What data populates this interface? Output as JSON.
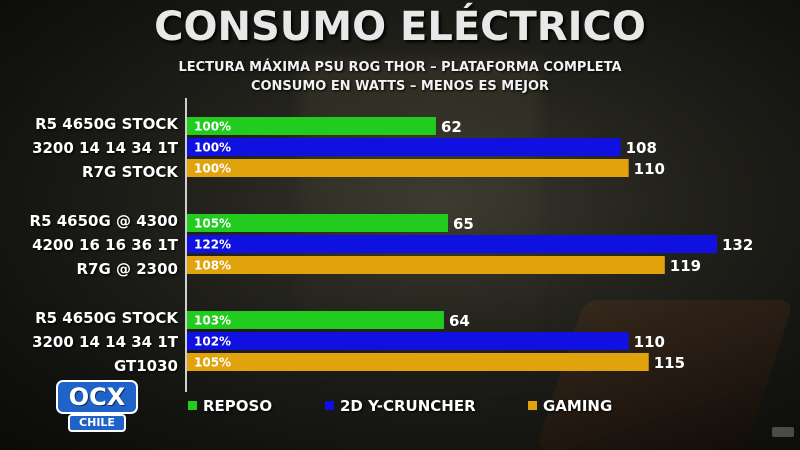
{
  "header": {
    "title": "CONSUMO ELÉCTRICO",
    "subtitle1": "LECTURA MÁXIMA PSU ROG THOR – PLATAFORMA COMPLETA",
    "subtitle2": "CONSUMO EN WATTS – MENOS ES MEJOR"
  },
  "groups": [
    {
      "line1": "R5 4650G STOCK",
      "line2": "3200 14 14 34 1T",
      "line3": "R7G STOCK"
    },
    {
      "line1": "R5 4650G @ 4300",
      "line2": "4200 16 16 36 1T",
      "line3": "R7G @ 2300"
    },
    {
      "line1": "R5 4650G STOCK",
      "line2": "3200 14 14 34 1T",
      "line3": "GT1030"
    }
  ],
  "legend": {
    "reposo": "REPOSO",
    "ycruncher": "2D Y-CRUNCHER",
    "gaming": "GAMING"
  },
  "logo": {
    "main": "OCX",
    "sub": "CHILE"
  },
  "colors": {
    "reposo": "#22cc1e",
    "ycruncher": "#1010e0",
    "gaming": "#e0a30e",
    "axis": "#cfcfcf"
  },
  "chart_data": {
    "type": "bar",
    "orientation": "horizontal",
    "series": [
      {
        "name": "REPOSO",
        "values": [
          62,
          65,
          64
        ],
        "percent_labels": [
          "100%",
          "105%",
          "103%"
        ]
      },
      {
        "name": "2D Y-CRUNCHER",
        "values": [
          108,
          132,
          110
        ],
        "percent_labels": [
          "100%",
          "122%",
          "102%"
        ]
      },
      {
        "name": "GAMING",
        "values": [
          110,
          119,
          115
        ],
        "percent_labels": [
          "100%",
          "108%",
          "105%"
        ]
      }
    ],
    "categories": [
      "R5 4650G STOCK / 3200 14 14 34 1T / R7G STOCK",
      "R5 4650G @ 4300 / 4200 16 16 36 1T / R7G @ 2300",
      "R5 4650G STOCK / 3200 14 14 34 1T / GT1030"
    ],
    "xlim": [
      0,
      132
    ],
    "grid": false,
    "legend_position": "bottom"
  }
}
